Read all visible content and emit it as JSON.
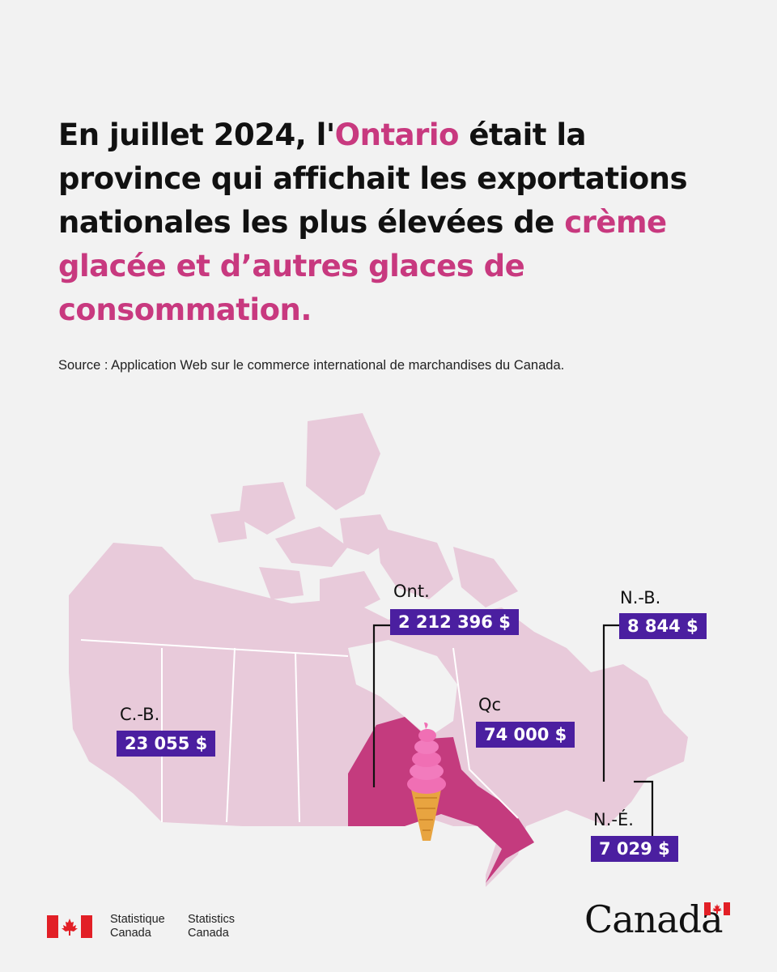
{
  "headline": {
    "part1": "En juillet 2024, l'",
    "highlight1": "Ontario",
    "part2": " était la province qui affichait les exportations nationales les plus élevées de ",
    "highlight2": "crème glacée et d’autres glaces de consommation."
  },
  "source": "Source : Application Web sur le commerce international de marchandises du Canada.",
  "map": {
    "icon": "ice-cream-cone-icon",
    "colors": {
      "land": "#e8cada",
      "highlight": "#c43b7e",
      "label_bg": "#4b1fa0"
    },
    "regions": [
      {
        "label": "Ont.",
        "value": "2 212 396 $"
      },
      {
        "label": "Qc",
        "value": "74 000 $"
      },
      {
        "label": "C.-B.",
        "value": "23 055 $"
      },
      {
        "label": "N.-B.",
        "value": "8 844 $"
      },
      {
        "label": "N.-É.",
        "value": "7 029 $"
      }
    ]
  },
  "footer": {
    "agency_fr_line1": "Statistique",
    "agency_fr_line2": "Canada",
    "agency_en_line1": "Statistics",
    "agency_en_line2": "Canada",
    "wordmark": "Canada"
  }
}
